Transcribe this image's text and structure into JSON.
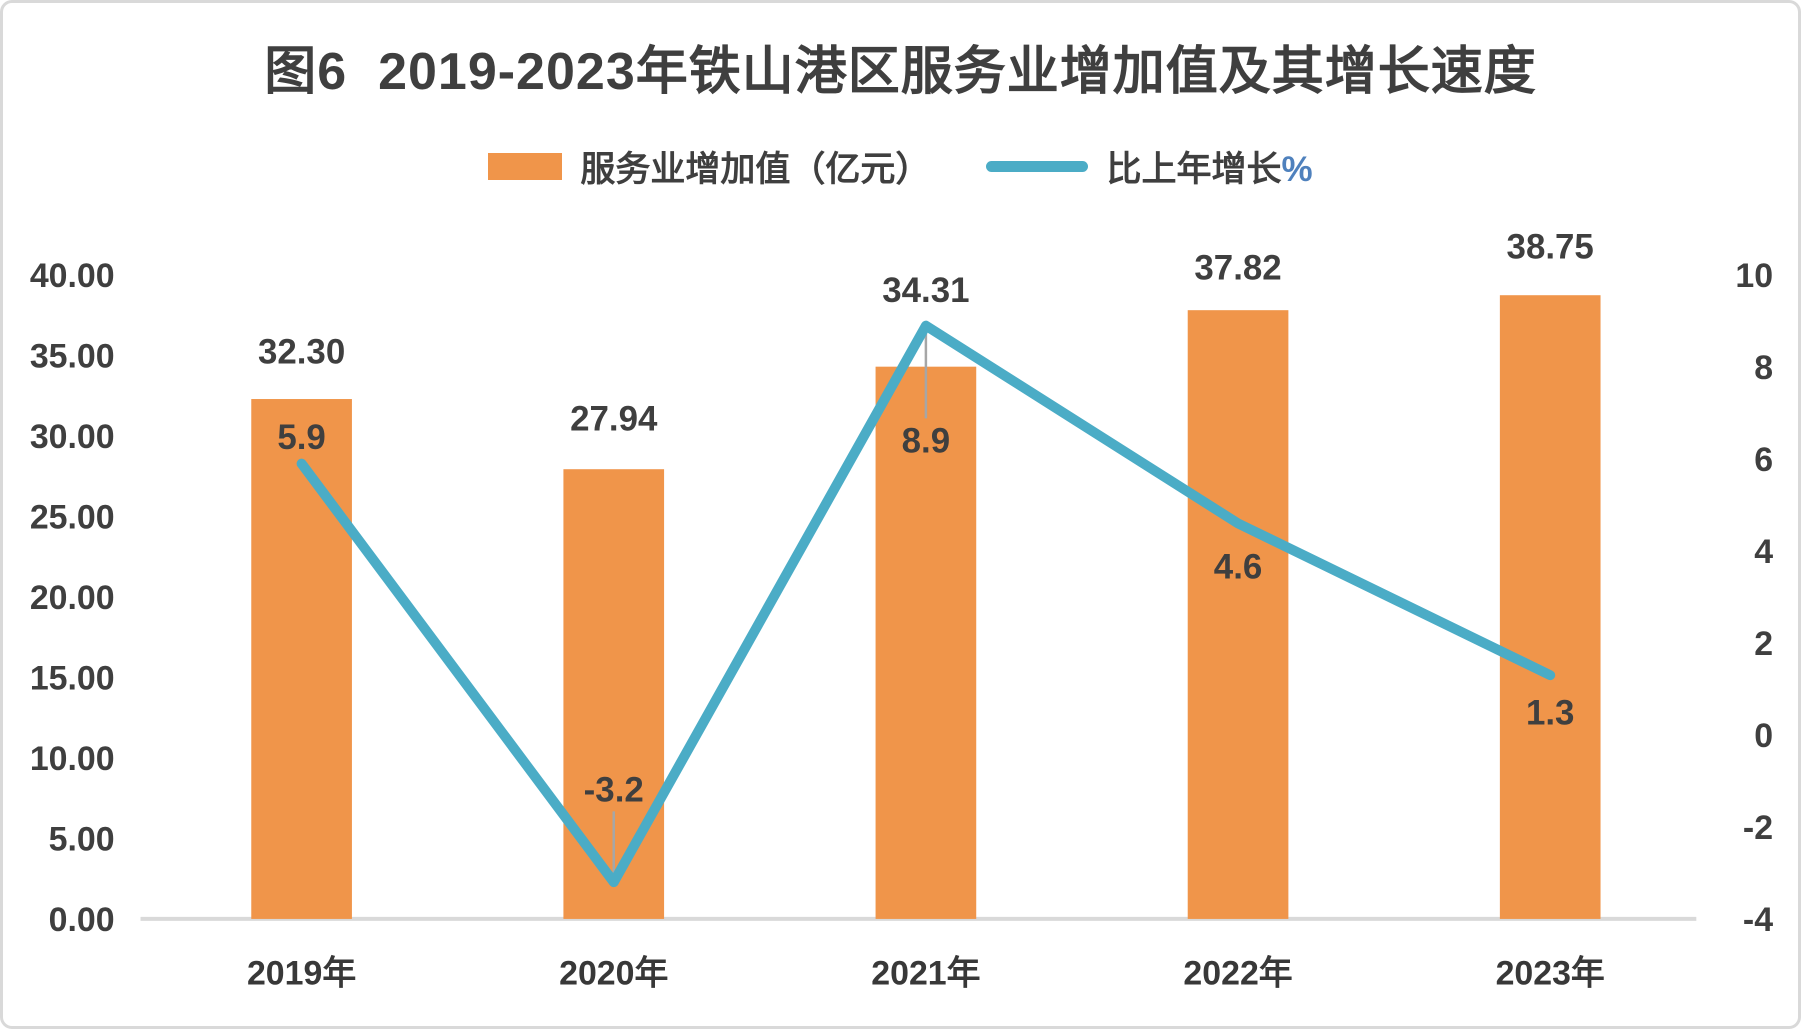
{
  "title": "图6  2019-2023年铁山港区服务业增加值及其增长速度",
  "legend": {
    "items": [
      {
        "swatch": "bar-swatch",
        "label": "服务业增加值（亿元）"
      },
      {
        "swatch": "line-swatch",
        "label": "比上年增长",
        "suffix": "%",
        "suffix_color": "#4f81bd"
      }
    ]
  },
  "chart_data": {
    "type": "combo-bar-line",
    "title": "图6  2019-2023年铁山港区服务业增加值及其增长速度",
    "categories": [
      "2019年",
      "2020年",
      "2021年",
      "2022年",
      "2023年"
    ],
    "series": [
      {
        "name": "服务业增加值（亿元）",
        "type": "bar",
        "axis": "left",
        "color": "#f0954a",
        "values": [
          32.3,
          27.94,
          34.31,
          37.82,
          38.75
        ],
        "labels": [
          "32.30",
          "27.94",
          "34.31",
          "37.82",
          "38.75"
        ]
      },
      {
        "name": "比上年增长%",
        "type": "line",
        "axis": "right",
        "color": "#4bacc6",
        "values": [
          5.9,
          -3.2,
          8.9,
          4.6,
          1.3
        ],
        "labels": [
          "5.9",
          "-3.2",
          "8.9",
          "4.6",
          "1.3"
        ]
      }
    ],
    "left_axis": {
      "min": 0,
      "max": 40,
      "step": 5,
      "tick_labels": [
        "0.00",
        "5.00",
        "10.00",
        "15.00",
        "20.00",
        "25.00",
        "30.00",
        "35.00",
        "40.00"
      ]
    },
    "right_axis": {
      "min": -4,
      "max": 10,
      "step": 2,
      "tick_labels": [
        "-4",
        "-2",
        "0",
        "2",
        "4",
        "6",
        "8",
        "10"
      ]
    },
    "grid": false,
    "legend_position": "top",
    "text_color": "#3f3f3f",
    "baseline_color": "#d9d9d9",
    "leader_color": "#a6a6a6",
    "label_layout": {
      "bar_label_dy": [
        -48,
        -51,
        -77,
        -43,
        -49
      ],
      "line_label_dy": [
        -27,
        -93,
        115,
        43,
        37
      ],
      "line_label_leader": [
        false,
        true,
        true,
        false,
        false
      ]
    }
  }
}
